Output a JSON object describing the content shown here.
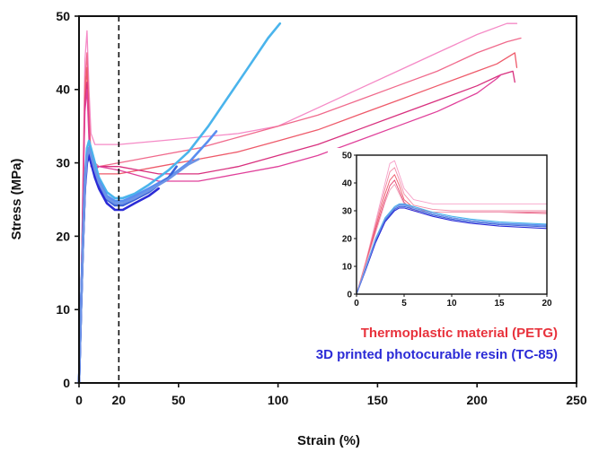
{
  "chart_data": {
    "main": {
      "type": "line",
      "xlabel": "Strain (%)",
      "ylabel": "Stress (MPa)",
      "xlim": [
        0,
        250
      ],
      "ylim": [
        0,
        50
      ],
      "xticks": [
        0,
        20,
        50,
        100,
        150,
        200,
        250
      ],
      "yticks": [
        0,
        10,
        20,
        30,
        40,
        50
      ],
      "grid": false,
      "reference_line_x": 20,
      "legend": [
        {
          "text": "Thermoplastic material (PETG)",
          "color": "#e8323c"
        },
        {
          "text": "3D printed photocurable resin (TC-85)",
          "color": "#2b2bd6"
        }
      ],
      "series": [
        {
          "group": "PETG",
          "color": "#f58ac6",
          "x": [
            0,
            1,
            2,
            3,
            4,
            5,
            6,
            8,
            10,
            20,
            40,
            60,
            80,
            100,
            120,
            140,
            160,
            180,
            200,
            215,
            220
          ],
          "y": [
            0,
            12,
            28,
            44,
            48,
            40,
            34,
            32.5,
            32.5,
            32.5,
            33,
            33.5,
            34,
            35,
            37.5,
            40,
            42.5,
            45,
            47.5,
            49,
            49
          ]
        },
        {
          "group": "PETG",
          "color": "#f06a8c",
          "x": [
            0,
            1,
            2,
            3,
            4,
            5,
            6,
            8,
            10,
            20,
            40,
            60,
            80,
            100,
            120,
            140,
            160,
            180,
            200,
            215,
            222
          ],
          "y": [
            0,
            12,
            27,
            41,
            45,
            37,
            31,
            30,
            29.5,
            30,
            31,
            32,
            33.5,
            35,
            36.5,
            38.5,
            40.5,
            42.5,
            45,
            46.5,
            47
          ]
        },
        {
          "group": "PETG",
          "color": "#ee5a6a",
          "x": [
            0,
            1,
            2,
            3,
            4,
            5,
            6,
            8,
            10,
            20,
            40,
            60,
            80,
            100,
            120,
            140,
            160,
            180,
            200,
            210,
            219,
            220
          ],
          "y": [
            0,
            12,
            26,
            39,
            43,
            35,
            30,
            29,
            28.5,
            28.5,
            29.5,
            30.5,
            31.5,
            33,
            34.5,
            36.5,
            38.5,
            40.5,
            42.5,
            43.5,
            45,
            43
          ]
        },
        {
          "group": "PETG",
          "color": "#d8307e",
          "x": [
            0,
            1,
            2,
            3,
            4,
            5,
            6,
            8,
            10,
            20,
            40,
            60,
            80,
            100,
            120,
            140,
            160,
            180,
            200,
            212,
            218,
            219
          ],
          "y": [
            0,
            12,
            25,
            38,
            41,
            34,
            29.5,
            29,
            29.5,
            29.5,
            28.5,
            28.5,
            29.5,
            31,
            32.5,
            34.5,
            36.5,
            38.5,
            40.5,
            42,
            42.5,
            41
          ]
        },
        {
          "group": "PETG",
          "color": "#e0409a",
          "x": [
            0,
            1,
            2,
            3,
            4,
            5,
            6,
            8,
            10,
            20,
            40,
            60,
            80,
            100,
            120,
            140,
            160,
            180,
            200,
            210,
            212
          ],
          "y": [
            0,
            12,
            25,
            37,
            40,
            33,
            29.5,
            29.5,
            29.5,
            29,
            27.5,
            27.5,
            28.5,
            29.5,
            31,
            33,
            35,
            37,
            39.5,
            41.5,
            42
          ]
        },
        {
          "group": "TC-85",
          "color": "#4ab4ec",
          "x": [
            0,
            1,
            2,
            3,
            4,
            5,
            6,
            8,
            10,
            14,
            18,
            22,
            28,
            35,
            45,
            55,
            65,
            75,
            85,
            95,
            101
          ],
          "y": [
            0,
            10,
            20,
            28,
            32,
            33,
            32,
            30,
            28,
            26,
            25.2,
            25.2,
            25.8,
            27,
            29,
            31.5,
            35,
            39,
            43,
            47,
            49
          ]
        },
        {
          "group": "TC-85",
          "color": "#5a8ef0",
          "x": [
            0,
            1,
            2,
            3,
            4,
            5,
            6,
            8,
            10,
            14,
            18,
            22,
            28,
            35,
            45,
            55,
            65,
            69
          ],
          "y": [
            0,
            10,
            19,
            27,
            31,
            32,
            31,
            29,
            27.5,
            25.5,
            24.8,
            24.8,
            25.5,
            26.5,
            28,
            30,
            33,
            34.3
          ]
        },
        {
          "group": "TC-85",
          "color": "#3b63d8",
          "x": [
            0,
            1,
            2,
            3,
            4,
            5,
            6,
            8,
            10,
            14,
            18,
            22,
            28,
            35,
            45,
            49
          ],
          "y": [
            0,
            10,
            19,
            27,
            30.5,
            31.5,
            30.5,
            28.5,
            27,
            25,
            24.2,
            24.2,
            25,
            26,
            28,
            29.5
          ]
        },
        {
          "group": "TC-85",
          "color": "#2b2bd6",
          "x": [
            0,
            1,
            2,
            3,
            4,
            5,
            6,
            8,
            10,
            14,
            18,
            22,
            28,
            35,
            40
          ],
          "y": [
            0,
            10,
            19,
            26.5,
            30,
            31,
            30,
            28,
            26.5,
            24.5,
            23.6,
            23.6,
            24.5,
            25.5,
            26.5
          ]
        },
        {
          "group": "TC-85",
          "color": "#6d94e6",
          "x": [
            0,
            1,
            2,
            3,
            4,
            5,
            6,
            8,
            10,
            14,
            18,
            22,
            28,
            35,
            45,
            55,
            60
          ],
          "y": [
            0,
            10,
            19,
            27,
            30.8,
            32,
            31,
            29,
            27.3,
            25.2,
            24.5,
            24.5,
            25.2,
            26.2,
            27.8,
            29.8,
            30.5
          ]
        }
      ]
    },
    "inset": {
      "type": "line",
      "xlim": [
        0,
        20
      ],
      "ylim": [
        0,
        50
      ],
      "xticks": [
        0,
        5,
        10,
        15,
        20
      ],
      "yticks": [
        0,
        10,
        20,
        30,
        40,
        50
      ],
      "grid": false,
      "series": [
        {
          "group": "PETG",
          "color": "#f7a0c8",
          "x": [
            0,
            1,
            2,
            3,
            3.5,
            4,
            4.5,
            5,
            6,
            8,
            10,
            12,
            15,
            20
          ],
          "y": [
            0,
            12,
            26,
            40,
            47,
            48,
            43,
            38,
            34,
            32.5,
            32.5,
            32.5,
            32.5,
            32.5
          ]
        },
        {
          "group": "PETG",
          "color": "#f28aa4",
          "x": [
            0,
            1,
            2,
            3,
            3.5,
            4,
            4.5,
            5,
            6,
            8,
            10,
            12,
            15,
            20
          ],
          "y": [
            0,
            12,
            25,
            38,
            44,
            45.5,
            41,
            36,
            32,
            30.5,
            30,
            30,
            30,
            30
          ]
        },
        {
          "group": "PETG",
          "color": "#ee5a6a",
          "x": [
            0,
            1,
            2,
            3,
            3.5,
            4,
            4.5,
            5,
            6,
            8,
            10,
            12,
            15,
            20
          ],
          "y": [
            0,
            11.5,
            24,
            36,
            41,
            43,
            39,
            34,
            31,
            29.5,
            29.5,
            29.5,
            29.5,
            29.5
          ]
        },
        {
          "group": "PETG",
          "color": "#e64670",
          "x": [
            0,
            1,
            2,
            3,
            3.5,
            4,
            4.5,
            5,
            6,
            8,
            10,
            12,
            15,
            20
          ],
          "y": [
            0,
            11,
            23,
            34,
            39,
            41,
            37,
            33,
            30,
            29.5,
            29.5,
            29.5,
            29.5,
            29
          ]
        },
        {
          "group": "PETG",
          "color": "#f0a0b8",
          "x": [
            0,
            1,
            2,
            3,
            3.5,
            4,
            4.5,
            5,
            6,
            8,
            10,
            12,
            15,
            20
          ],
          "y": [
            0,
            11,
            22,
            33,
            37.5,
            39.5,
            36,
            32.5,
            30,
            29.5,
            29.5,
            29.5,
            29.5,
            29.5
          ]
        },
        {
          "group": "TC-85",
          "color": "#4ab4ec",
          "x": [
            0,
            1,
            2,
            3,
            4,
            4.5,
            5,
            6,
            8,
            10,
            12,
            15,
            20
          ],
          "y": [
            0,
            10,
            20,
            27.5,
            31.5,
            32.5,
            32.5,
            31.5,
            29.5,
            28,
            27,
            26,
            25.2
          ]
        },
        {
          "group": "TC-85",
          "color": "#5a8ef0",
          "x": [
            0,
            1,
            2,
            3,
            4,
            4.5,
            5,
            6,
            8,
            10,
            12,
            15,
            20
          ],
          "y": [
            0,
            9.5,
            19.5,
            27,
            31,
            32,
            32,
            31,
            29,
            27.5,
            26.5,
            25.5,
            24.8
          ]
        },
        {
          "group": "TC-85",
          "color": "#3b63d8",
          "x": [
            0,
            1,
            2,
            3,
            4,
            4.5,
            5,
            6,
            8,
            10,
            12,
            15,
            20
          ],
          "y": [
            0,
            9.5,
            19,
            26.5,
            30.5,
            31.5,
            31.5,
            30.5,
            28.5,
            27,
            26,
            25,
            24.2
          ]
        },
        {
          "group": "TC-85",
          "color": "#2b2bd6",
          "x": [
            0,
            1,
            2,
            3,
            4,
            4.5,
            5,
            6,
            8,
            10,
            12,
            15,
            20
          ],
          "y": [
            0,
            9,
            18.5,
            26,
            30,
            31,
            31,
            30,
            28,
            26.5,
            25.5,
            24.5,
            23.6
          ]
        },
        {
          "group": "TC-85",
          "color": "#6d94e6",
          "x": [
            0,
            1,
            2,
            3,
            4,
            4.5,
            5,
            6,
            8,
            10,
            12,
            15,
            20
          ],
          "y": [
            0,
            9.5,
            19.5,
            27,
            31,
            32.2,
            32.2,
            31,
            29,
            27.5,
            26.5,
            25.3,
            24.5
          ]
        }
      ]
    }
  }
}
